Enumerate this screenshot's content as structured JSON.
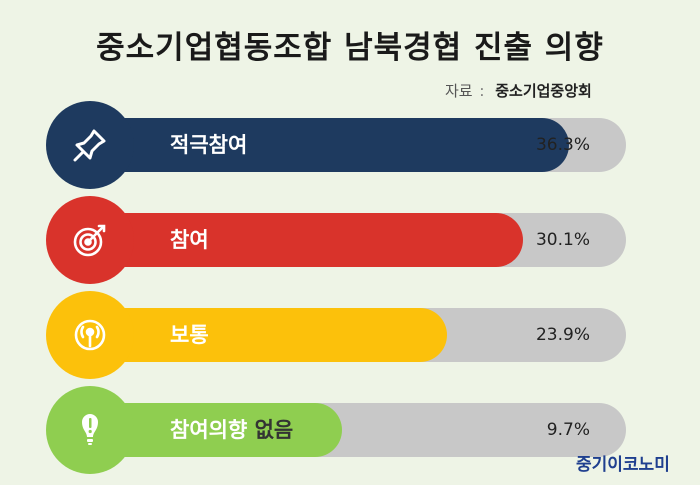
{
  "title": "중소기업협동조합 남북경협 진출 의향",
  "source": {
    "label": "자료",
    "separator": ":",
    "value": "중소기업중앙회"
  },
  "brand": "중기이코노미",
  "chart_data": {
    "type": "bar",
    "orientation": "horizontal",
    "title": "중소기업협동조합 남북경협 진출 의향",
    "unit": "%",
    "xlim": [
      0,
      40
    ],
    "categories": [
      "적극참여",
      "참여",
      "보통",
      "참여의향 없음"
    ],
    "values": [
      36.3,
      30.1,
      23.9,
      9.7
    ],
    "value_labels": [
      "36.3%",
      "30.1%",
      "23.9%",
      "9.7%"
    ],
    "colors": [
      "#1e3a5f",
      "#d9332b",
      "#fcc10b",
      "#8fce50"
    ],
    "icons": [
      "pushpin-icon",
      "target-icon",
      "broadcast-icon",
      "exclamation-icon"
    ]
  }
}
